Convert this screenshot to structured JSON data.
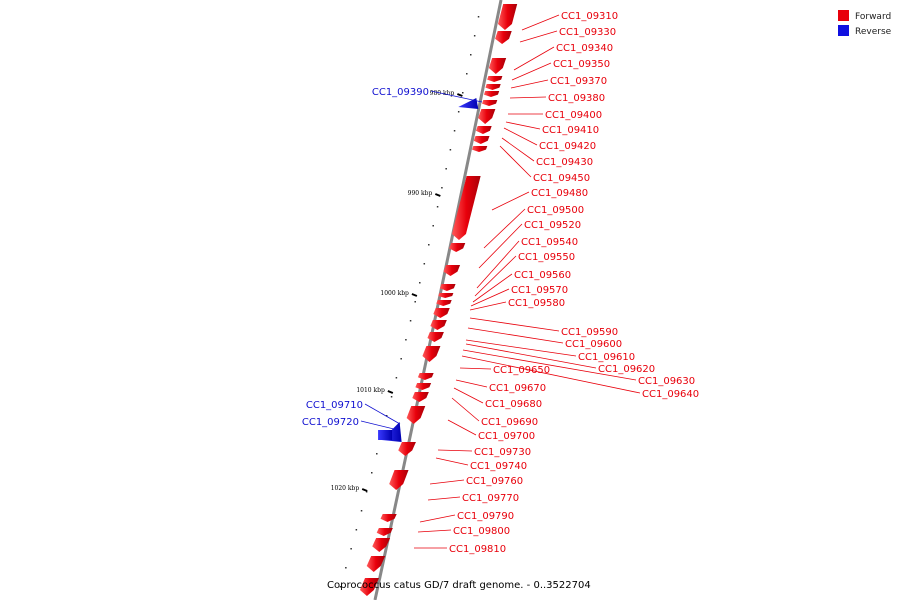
{
  "title": "Coprococcus catus GD/7 draft genome. - 0..3522704",
  "legend": [
    {
      "name": "Forward",
      "color": "#e8000b"
    },
    {
      "name": "Reverse",
      "color": "#1010e0"
    }
  ],
  "ticks": [
    {
      "label": "980 kbp",
      "pos": 980
    },
    {
      "label": "990 kbp",
      "pos": 990
    },
    {
      "label": "1000 kbp",
      "pos": 1000
    },
    {
      "label": "1010 kbp",
      "pos": 1010
    },
    {
      "label": "1020 kbp",
      "pos": 1020
    }
  ],
  "genes": [
    {
      "name": "CC1_09310",
      "strand": "forward"
    },
    {
      "name": "CC1_09330",
      "strand": "forward"
    },
    {
      "name": "CC1_09340",
      "strand": "forward"
    },
    {
      "name": "CC1_09350",
      "strand": "forward"
    },
    {
      "name": "CC1_09370",
      "strand": "forward"
    },
    {
      "name": "CC1_09380",
      "strand": "forward"
    },
    {
      "name": "CC1_09390",
      "strand": "reverse"
    },
    {
      "name": "CC1_09400",
      "strand": "forward"
    },
    {
      "name": "CC1_09410",
      "strand": "forward"
    },
    {
      "name": "CC1_09420",
      "strand": "forward"
    },
    {
      "name": "CC1_09430",
      "strand": "forward"
    },
    {
      "name": "CC1_09450",
      "strand": "forward"
    },
    {
      "name": "CC1_09480",
      "strand": "forward"
    },
    {
      "name": "CC1_09500",
      "strand": "forward"
    },
    {
      "name": "CC1_09520",
      "strand": "forward"
    },
    {
      "name": "CC1_09540",
      "strand": "forward"
    },
    {
      "name": "CC1_09550",
      "strand": "forward"
    },
    {
      "name": "CC1_09560",
      "strand": "forward"
    },
    {
      "name": "CC1_09570",
      "strand": "forward"
    },
    {
      "name": "CC1_09580",
      "strand": "forward"
    },
    {
      "name": "CC1_09590",
      "strand": "forward"
    },
    {
      "name": "CC1_09600",
      "strand": "forward"
    },
    {
      "name": "CC1_09610",
      "strand": "forward"
    },
    {
      "name": "CC1_09620",
      "strand": "forward"
    },
    {
      "name": "CC1_09630",
      "strand": "forward"
    },
    {
      "name": "CC1_09640",
      "strand": "forward"
    },
    {
      "name": "CC1_09650",
      "strand": "forward"
    },
    {
      "name": "CC1_09670",
      "strand": "forward"
    },
    {
      "name": "CC1_09680",
      "strand": "forward"
    },
    {
      "name": "CC1_09690",
      "strand": "forward"
    },
    {
      "name": "CC1_09700",
      "strand": "forward"
    },
    {
      "name": "CC1_09710",
      "strand": "reverse"
    },
    {
      "name": "CC1_09720",
      "strand": "reverse"
    },
    {
      "name": "CC1_09730",
      "strand": "forward"
    },
    {
      "name": "CC1_09740",
      "strand": "forward"
    },
    {
      "name": "CC1_09760",
      "strand": "forward"
    },
    {
      "name": "CC1_09770",
      "strand": "forward"
    },
    {
      "name": "CC1_09790",
      "strand": "forward"
    },
    {
      "name": "CC1_09800",
      "strand": "forward"
    },
    {
      "name": "CC1_09810",
      "strand": "forward"
    }
  ]
}
